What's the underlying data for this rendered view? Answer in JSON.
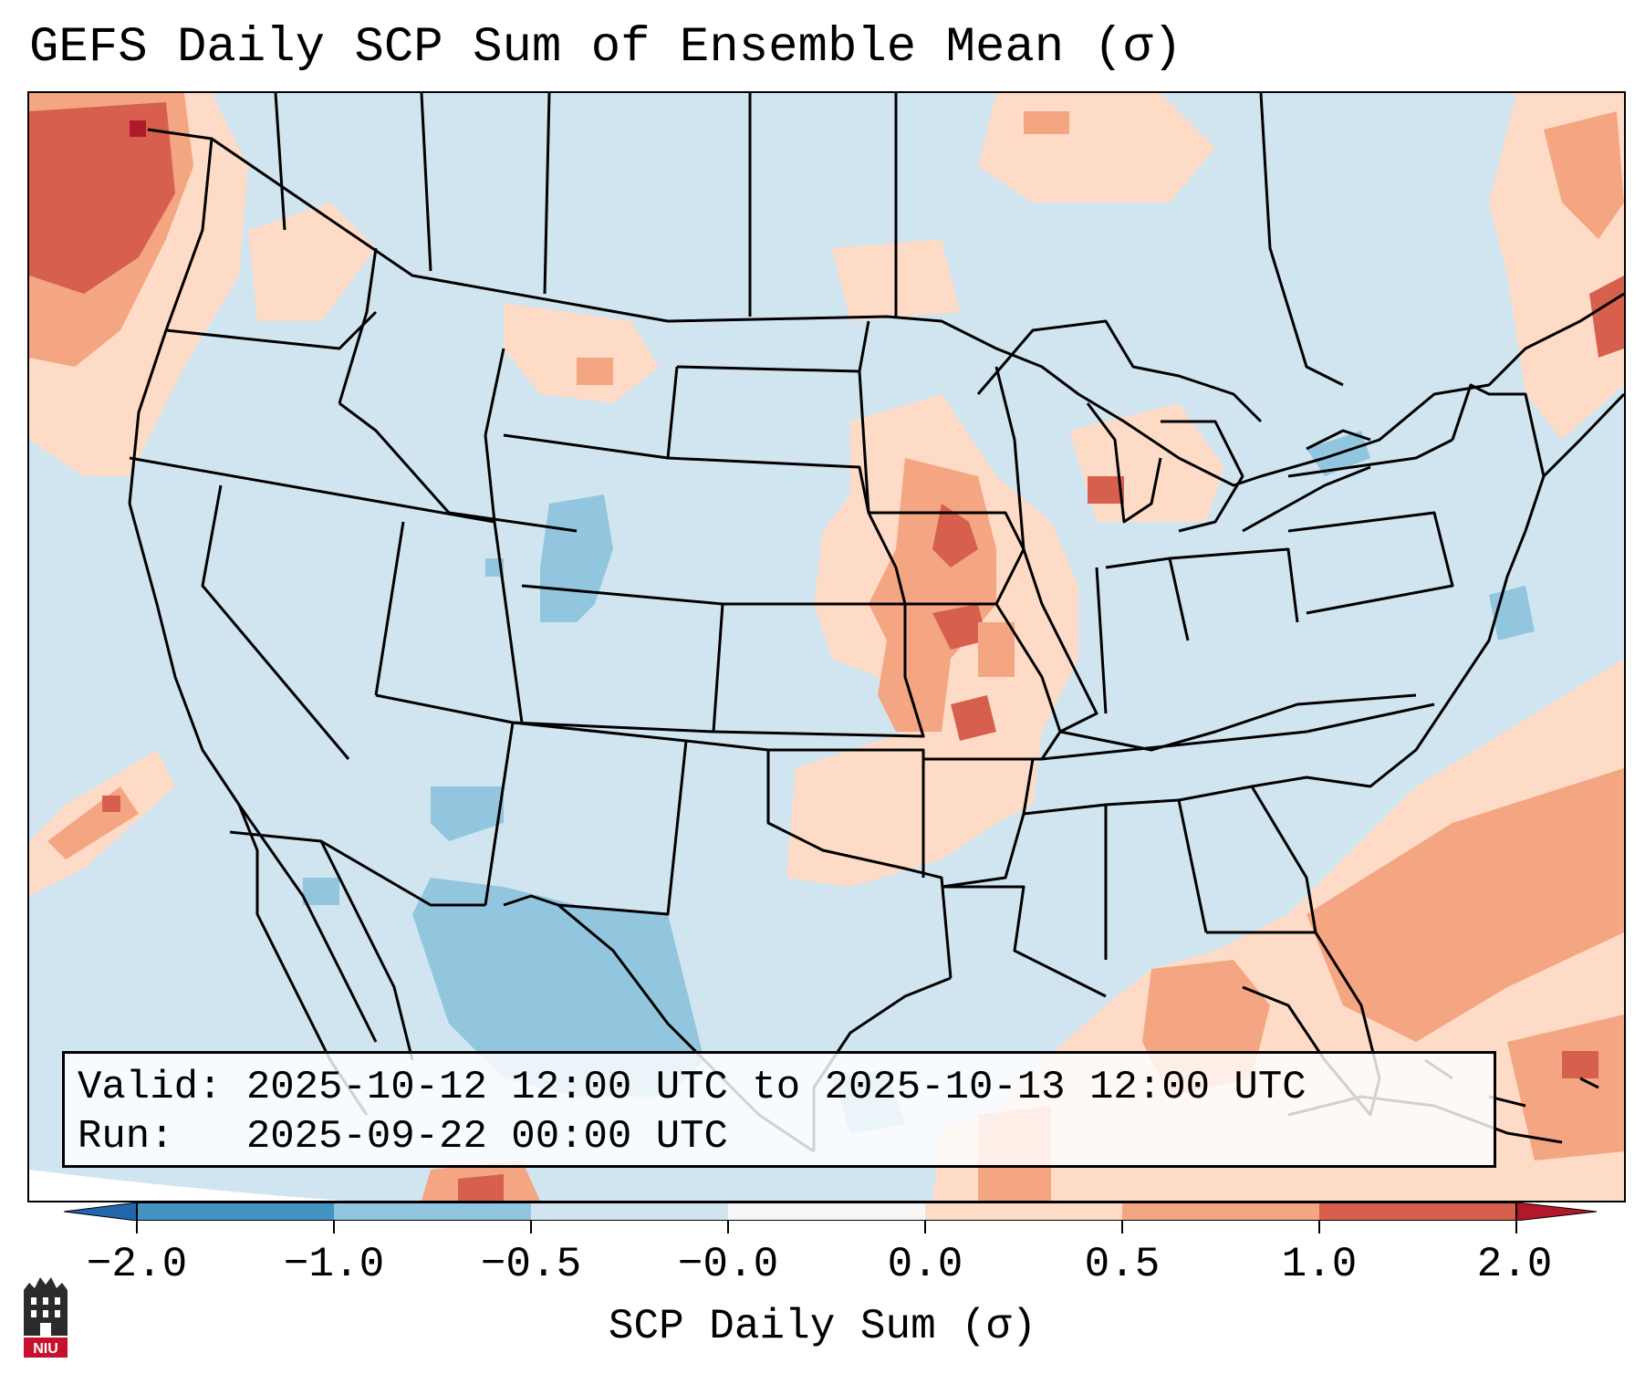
{
  "title": "GEFS Daily SCP Sum of Ensemble Mean (σ)",
  "info_box": {
    "valid_label": "Valid:",
    "valid_value": "2025-10-12 12:00 UTC to 2025-10-13 12:00 UTC",
    "run_label": "Run:",
    "run_value": "2025-09-22 00:00 UTC"
  },
  "colorbar": {
    "label": "SCP Daily Sum (σ)",
    "ticks": [
      "−2.0",
      "−1.0",
      "−0.5",
      "−0.0",
      "0.0",
      "0.5",
      "1.0",
      "2.0"
    ],
    "colors": {
      "lt_-2": "#2166ac",
      "-2_-1": "#4393c3",
      "-1_-0.5": "#92c5de",
      "-0.5_0": "#d1e5f0",
      "0_0.5": "#fddbc7",
      "0.5_1": "#f4a582",
      "1_2": "#d6604d",
      "gt_2": "#b2182b"
    }
  },
  "logo": {
    "text": "NIU",
    "name": "NIU logo"
  }
}
